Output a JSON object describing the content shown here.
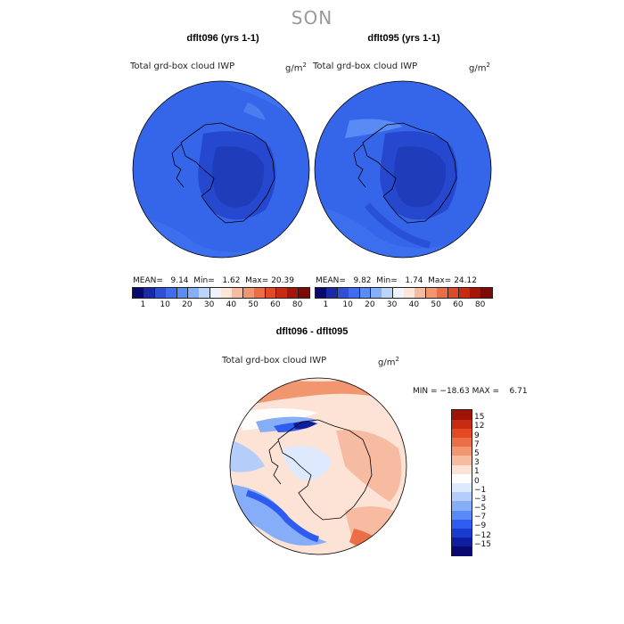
{
  "title": "SON",
  "panels": [
    {
      "title": "dflt096 (yrs 1-1)",
      "variable": "Total grd-box cloud IWP",
      "unit": "g/m",
      "unit_exp": "2",
      "stats": {
        "mean_label": "MEAN=",
        "mean": "9.14",
        "min_label": "Min=",
        "min": "1.62",
        "max_label": "Max=",
        "max": "20.39"
      }
    },
    {
      "title": "dflt095 (yrs 1-1)",
      "variable": "Total grd-box cloud IWP",
      "unit": "g/m",
      "unit_exp": "2",
      "stats": {
        "mean_label": "MEAN=",
        "mean": "9.82",
        "min_label": "Min=",
        "min": "1.74",
        "max_label": "Max=",
        "max": "24.12"
      }
    },
    {
      "title": "dflt096 - dflt095",
      "variable": "Total grd-box cloud IWP",
      "unit": "g/m",
      "unit_exp": "2",
      "stats": {
        "text": "MIN = −18.63 MAX =    6.71"
      }
    }
  ],
  "colorbar_abs": {
    "colors": [
      "#08086e",
      "#1a2aa6",
      "#2f4fd6",
      "#3f6cf0",
      "#5a8cf5",
      "#86aef8",
      "#bcd3fa",
      "#eef3fd",
      "#fde5d8",
      "#f6bba1",
      "#f29670",
      "#ec6e47",
      "#e24a26",
      "#c92a12",
      "#a5160a",
      "#7d0a05"
    ],
    "labels": [
      "1",
      "10",
      "20",
      "30",
      "40",
      "50",
      "60",
      "80"
    ]
  },
  "colorbar_diff": {
    "colors": [
      "#08086e",
      "#0d1fa0",
      "#1a3bd0",
      "#2f5cf0",
      "#5a8af5",
      "#86aef8",
      "#b4cdfa",
      "#dde9fd",
      "#ffffff",
      "#fde3d5",
      "#f6bba1",
      "#f29670",
      "#ec6e47",
      "#e44a22",
      "#c92a12",
      "#9e1208"
    ],
    "labels": [
      "−15",
      "−12",
      "−9",
      "−7",
      "−5",
      "−3",
      "−1",
      "0",
      "1",
      "3",
      "5",
      "7",
      "9",
      "12",
      "15"
    ]
  },
  "chart_data": [
    {
      "type": "heatmap",
      "title": "dflt096 (yrs 1-1)",
      "variable": "Total grd-box cloud IWP",
      "units": "g/m^2",
      "projection": "south polar stereographic",
      "season": "SON",
      "summary": {
        "mean": 9.14,
        "min": 1.62,
        "max": 20.39
      },
      "colorbar_levels": [
        1,
        10,
        20,
        30,
        40,
        50,
        60,
        80
      ]
    },
    {
      "type": "heatmap",
      "title": "dflt095 (yrs 1-1)",
      "variable": "Total grd-box cloud IWP",
      "units": "g/m^2",
      "projection": "south polar stereographic",
      "season": "SON",
      "summary": {
        "mean": 9.82,
        "min": 1.74,
        "max": 24.12
      },
      "colorbar_levels": [
        1,
        10,
        20,
        30,
        40,
        50,
        60,
        80
      ]
    },
    {
      "type": "heatmap",
      "title": "dflt096 - dflt095",
      "variable": "Total grd-box cloud IWP",
      "units": "g/m^2",
      "projection": "south polar stereographic",
      "season": "SON",
      "summary": {
        "min": -18.63,
        "max": 6.71
      },
      "colorbar_levels": [
        -15,
        -12,
        -9,
        -7,
        -5,
        -3,
        -1,
        0,
        1,
        3,
        5,
        7,
        9,
        12,
        15
      ]
    }
  ]
}
